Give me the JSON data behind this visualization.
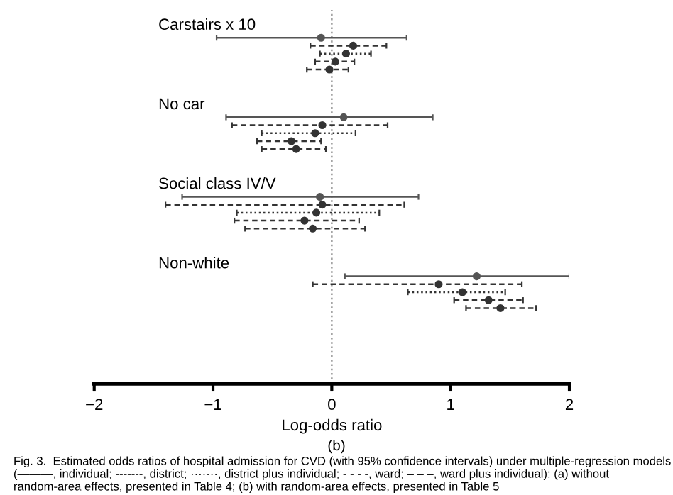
{
  "chart_data": {
    "type": "scatter",
    "orientation": "horizontal",
    "categories": [
      null,
      null,
      null,
      null,
      null,
      null,
      null,
      null,
      null,
      null,
      null,
      null,
      null,
      null,
      null,
      null,
      null,
      null,
      null,
      null,
      null,
      null,
      null,
      null,
      null,
      null,
      null,
      null,
      null,
      null,
      null,
      null,
      null,
      null,
      null,
      null,
      null,
      null,
      null,
      null,
      null,
      null,
      null,
      null,
      null,
      null,
      null
    ],
    "series": [
      {
        "color": "#555555",
        "line_style": "solid",
        "values": [
          null,
          null,
          null,
          -0.09,
          null,
          null,
          null,
          null,
          null,
          null,
          null,
          null,
          null,
          0.1,
          null,
          null,
          null,
          null,
          null,
          null,
          null,
          null,
          null,
          -0.1,
          null,
          null,
          null,
          null,
          null,
          null,
          null,
          null,
          null,
          1.22,
          null,
          null,
          null,
          null,
          null,
          null,
          null,
          null,
          null,
          null,
          null,
          null,
          null
        ],
        "errors": [
          null,
          null,
          null,
          [
            -0.97,
            0.63
          ],
          null,
          null,
          null,
          null,
          null,
          null,
          null,
          null,
          null,
          [
            -0.89,
            0.85
          ],
          null,
          null,
          null,
          null,
          null,
          null,
          null,
          null,
          null,
          [
            -1.26,
            0.73
          ],
          null,
          null,
          null,
          null,
          null,
          null,
          null,
          null,
          null,
          [
            0.11,
            2.0
          ],
          null,
          null,
          null,
          null,
          null,
          null,
          null,
          null,
          null,
          null,
          null,
          null,
          null
        ]
      },
      {
        "color": "#333333",
        "line_style": "dashed",
        "values": [
          null,
          null,
          null,
          null,
          0.18,
          null,
          null,
          null,
          null,
          null,
          null,
          null,
          null,
          null,
          -0.08,
          null,
          null,
          null,
          null,
          null,
          null,
          null,
          null,
          null,
          -0.08,
          null,
          null,
          null,
          null,
          null,
          null,
          null,
          null,
          null,
          0.9,
          null,
          null,
          null,
          null,
          null,
          null,
          null,
          null,
          null,
          null,
          null,
          null
        ],
        "errors": [
          null,
          null,
          null,
          null,
          [
            -0.18,
            0.46
          ],
          null,
          null,
          null,
          null,
          null,
          null,
          null,
          null,
          null,
          [
            -0.84,
            0.47
          ],
          null,
          null,
          null,
          null,
          null,
          null,
          null,
          null,
          null,
          [
            -1.4,
            0.61
          ],
          null,
          null,
          null,
          null,
          null,
          null,
          null,
          null,
          null,
          [
            -0.16,
            1.6
          ],
          null,
          null,
          null,
          null,
          null,
          null,
          null,
          null,
          null,
          null,
          null,
          null
        ]
      },
      {
        "color": "#333333",
        "line_style": "dotted",
        "values": [
          null,
          null,
          null,
          null,
          null,
          0.12,
          null,
          null,
          null,
          null,
          null,
          null,
          null,
          null,
          null,
          -0.14,
          null,
          null,
          null,
          null,
          null,
          null,
          null,
          null,
          null,
          -0.13,
          null,
          null,
          null,
          null,
          null,
          null,
          null,
          null,
          null,
          1.1,
          null,
          null,
          null,
          null,
          null,
          null,
          null,
          null,
          null,
          null,
          null
        ],
        "errors": [
          null,
          null,
          null,
          null,
          null,
          [
            -0.1,
            0.33
          ],
          null,
          null,
          null,
          null,
          null,
          null,
          null,
          null,
          null,
          [
            -0.59,
            0.2
          ],
          null,
          null,
          null,
          null,
          null,
          null,
          null,
          null,
          null,
          [
            -0.8,
            0.4
          ],
          null,
          null,
          null,
          null,
          null,
          null,
          null,
          null,
          null,
          [
            0.64,
            1.46
          ],
          null,
          null,
          null,
          null,
          null,
          null,
          null,
          null,
          null,
          null,
          null
        ]
      },
      {
        "color": "#333333",
        "line_style": "dashed",
        "values": [
          null,
          null,
          null,
          null,
          null,
          null,
          0.03,
          null,
          null,
          null,
          null,
          null,
          null,
          null,
          null,
          null,
          -0.34,
          null,
          null,
          null,
          null,
          null,
          null,
          null,
          null,
          null,
          -0.23,
          null,
          null,
          null,
          null,
          null,
          null,
          null,
          null,
          null,
          1.32,
          null,
          null,
          null,
          null,
          null,
          null,
          null,
          null,
          null,
          null
        ],
        "errors": [
          null,
          null,
          null,
          null,
          null,
          null,
          [
            -0.14,
            0.19
          ],
          null,
          null,
          null,
          null,
          null,
          null,
          null,
          null,
          null,
          [
            -0.63,
            -0.09
          ],
          null,
          null,
          null,
          null,
          null,
          null,
          null,
          null,
          null,
          [
            -0.82,
            0.23
          ],
          null,
          null,
          null,
          null,
          null,
          null,
          null,
          null,
          null,
          [
            1.03,
            1.61
          ],
          null,
          null,
          null,
          null,
          null,
          null,
          null,
          null,
          null,
          null
        ]
      },
      {
        "color": "#333333",
        "line_style": "dashed",
        "values": [
          null,
          null,
          null,
          null,
          null,
          null,
          null,
          -0.02,
          null,
          null,
          null,
          null,
          null,
          null,
          null,
          null,
          null,
          -0.3,
          null,
          null,
          null,
          null,
          null,
          null,
          null,
          null,
          null,
          -0.16,
          null,
          null,
          null,
          null,
          null,
          null,
          null,
          null,
          null,
          1.42,
          null,
          null,
          null,
          null,
          null,
          null,
          null,
          null,
          null
        ],
        "errors": [
          null,
          null,
          null,
          null,
          null,
          null,
          null,
          [
            -0.21,
            0.14
          ],
          null,
          null,
          null,
          null,
          null,
          null,
          null,
          null,
          null,
          [
            -0.59,
            -0.05
          ],
          null,
          null,
          null,
          null,
          null,
          null,
          null,
          null,
          null,
          [
            -0.73,
            0.28
          ],
          null,
          null,
          null,
          null,
          null,
          null,
          null,
          null,
          null,
          [
            1.13,
            1.72
          ],
          null,
          null,
          null,
          null,
          null,
          null,
          null,
          null,
          null
        ]
      }
    ],
    "marker": "circle",
    "xlim": [
      -2,
      2
    ],
    "xticks": [
      {
        "value": -2,
        "label": "−2"
      },
      {
        "value": -1,
        "label": "−1"
      },
      0,
      1,
      2
    ],
    "xlabel": "Log-odds ratio",
    "tick_labels": "x",
    "grid": false,
    "legend": false,
    "ref_lines": [
      {
        "axis": "x",
        "value": 0,
        "color": "#999999",
        "line_style": "dotted"
      }
    ],
    "annotations": [
      "Carstairs x 10",
      "No car",
      "Social class IV/V",
      "Non-white",
      "(b)",
      "Fig. 3.  Estimated odds ratios of hospital admission for CVD (with 95% confidence intervals) under multiple-regression models (———, individual; -------, district; ·······, district plus individual; - - - -, ward; – – –, ward plus individual): (a) without random-area effects, presented in Table 4; (b) with random-area effects, presented in Table 5"
    ]
  }
}
